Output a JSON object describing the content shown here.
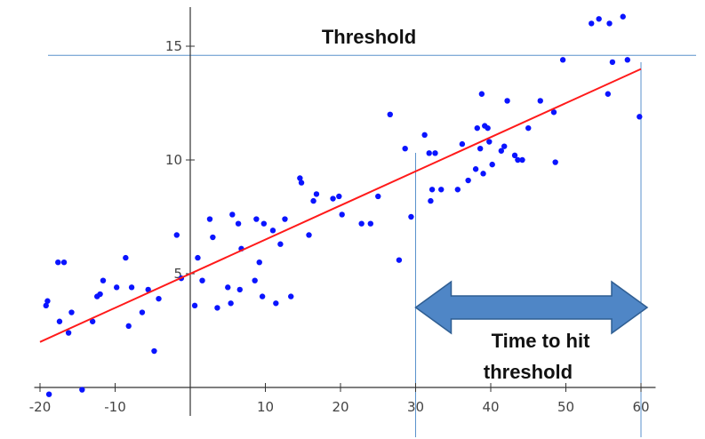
{
  "chart_data": {
    "type": "scatter",
    "xlim": [
      -21,
      61
    ],
    "ylim": [
      0,
      16.5
    ],
    "x_ticks": [
      -20,
      -10,
      10,
      20,
      30,
      40,
      50,
      60
    ],
    "x_tick_labels": [
      "-20",
      "-10",
      "10",
      "20",
      "30",
      "40",
      "50",
      "60"
    ],
    "y_ticks": [
      5,
      10,
      15
    ],
    "y_tick_labels": [
      "5",
      "10",
      "15"
    ],
    "grid": false,
    "points": [
      [
        -19.2,
        3.6
      ],
      [
        -19.0,
        3.8
      ],
      [
        -18.8,
        -0.3
      ],
      [
        -17.6,
        5.5
      ],
      [
        -17.4,
        2.9
      ],
      [
        -16.8,
        5.5
      ],
      [
        -16.2,
        2.4
      ],
      [
        -15.8,
        3.3
      ],
      [
        -14.4,
        -0.1
      ],
      [
        -13.0,
        2.9
      ],
      [
        -12.4,
        4.0
      ],
      [
        -12.0,
        4.1
      ],
      [
        -11.6,
        4.7
      ],
      [
        -9.8,
        4.4
      ],
      [
        -8.6,
        5.7
      ],
      [
        -8.2,
        2.7
      ],
      [
        -7.8,
        4.4
      ],
      [
        -6.4,
        3.3
      ],
      [
        -5.6,
        4.3
      ],
      [
        -4.8,
        1.6
      ],
      [
        -4.2,
        3.9
      ],
      [
        -1.8,
        6.7
      ],
      [
        -1.2,
        4.8
      ],
      [
        0.6,
        3.6
      ],
      [
        1.0,
        5.7
      ],
      [
        1.6,
        4.7
      ],
      [
        2.6,
        7.4
      ],
      [
        3.0,
        6.6
      ],
      [
        3.6,
        3.5
      ],
      [
        5.0,
        4.4
      ],
      [
        5.4,
        3.7
      ],
      [
        5.6,
        7.6
      ],
      [
        6.4,
        7.2
      ],
      [
        6.6,
        4.3
      ],
      [
        6.8,
        6.1
      ],
      [
        8.6,
        4.7
      ],
      [
        8.8,
        7.4
      ],
      [
        9.2,
        5.5
      ],
      [
        9.6,
        4.0
      ],
      [
        9.8,
        7.2
      ],
      [
        11.0,
        6.9
      ],
      [
        11.4,
        3.7
      ],
      [
        12.0,
        6.3
      ],
      [
        12.6,
        7.4
      ],
      [
        13.4,
        4.0
      ],
      [
        14.6,
        9.2
      ],
      [
        14.8,
        9.0
      ],
      [
        15.8,
        6.7
      ],
      [
        16.4,
        8.2
      ],
      [
        16.8,
        8.5
      ],
      [
        19.0,
        8.3
      ],
      [
        19.8,
        8.4
      ],
      [
        20.2,
        7.6
      ],
      [
        22.8,
        7.2
      ],
      [
        24.0,
        7.2
      ],
      [
        25.0,
        8.4
      ],
      [
        26.6,
        12.0
      ],
      [
        27.8,
        5.6
      ],
      [
        28.6,
        10.5
      ],
      [
        29.4,
        7.5
      ],
      [
        31.2,
        11.1
      ],
      [
        31.8,
        10.3
      ],
      [
        32.0,
        8.2
      ],
      [
        32.2,
        8.7
      ],
      [
        32.6,
        10.3
      ],
      [
        33.4,
        8.7
      ],
      [
        35.6,
        8.7
      ],
      [
        36.2,
        10.7
      ],
      [
        37.0,
        9.1
      ],
      [
        38.0,
        9.6
      ],
      [
        38.2,
        11.4
      ],
      [
        38.6,
        10.5
      ],
      [
        38.8,
        12.9
      ],
      [
        39.0,
        9.4
      ],
      [
        39.2,
        11.5
      ],
      [
        39.6,
        11.4
      ],
      [
        39.8,
        10.8
      ],
      [
        40.2,
        9.8
      ],
      [
        41.4,
        10.4
      ],
      [
        41.8,
        10.6
      ],
      [
        42.2,
        12.6
      ],
      [
        43.2,
        10.2
      ],
      [
        43.6,
        10.0
      ],
      [
        44.2,
        10.0
      ],
      [
        45.0,
        11.4
      ],
      [
        46.6,
        12.6
      ],
      [
        48.4,
        12.1
      ],
      [
        48.6,
        9.9
      ],
      [
        49.6,
        14.4
      ],
      [
        53.4,
        16.0
      ],
      [
        54.4,
        16.2
      ],
      [
        55.6,
        12.9
      ],
      [
        55.8,
        16.0
      ],
      [
        56.2,
        14.3
      ],
      [
        57.6,
        16.3
      ],
      [
        58.2,
        14.4
      ],
      [
        59.8,
        11.9
      ]
    ],
    "fit_line": {
      "x": [
        -20,
        60
      ],
      "y": [
        2.0,
        14.0
      ]
    },
    "threshold_y": 14.6,
    "marker_x": [
      30,
      60
    ],
    "annotations": {
      "threshold_label": "Threshold",
      "arrow_label_line1": "Time to hit",
      "arrow_label_line2": "threshold"
    },
    "colors": {
      "points": "#0a14ff",
      "fit_line": "#ff1a1a",
      "guide_line": "#5a92cc",
      "arrow_fill": "#4f86c6",
      "arrow_stroke": "#2f5e92",
      "axis": "#333333"
    }
  }
}
